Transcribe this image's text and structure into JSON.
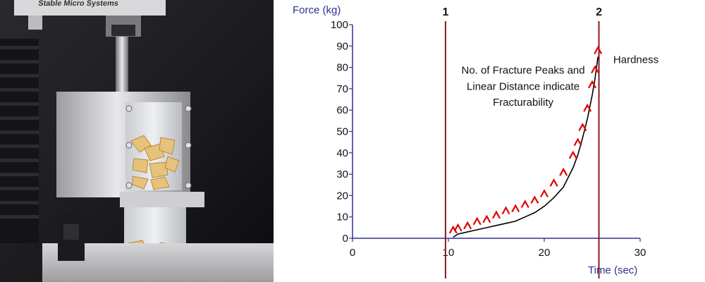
{
  "photo": {
    "brand_text": "Stable Micro Systems"
  },
  "colors": {
    "axis": "#2e3192",
    "marker_line": "#8b1a1a",
    "peak_markers": "#e00000",
    "main_curve": "#000000"
  },
  "chart_data": {
    "type": "line",
    "title": "",
    "xlabel": "Time (sec)",
    "ylabel": "Force (kg)",
    "xlim": [
      0,
      30
    ],
    "ylim": [
      0,
      100
    ],
    "xticks": [
      0,
      10,
      20,
      30
    ],
    "yticks": [
      0,
      10,
      20,
      30,
      40,
      50,
      60,
      70,
      80,
      90,
      100
    ],
    "grid": false,
    "markers": [
      {
        "label": "1",
        "x": 9.7
      },
      {
        "label": "2",
        "x": 25.7
      }
    ],
    "annotations": [
      {
        "text": "No. of Fracture Peaks and",
        "x": 17.8,
        "y": 77
      },
      {
        "text": "Linear Distance indicate",
        "x": 17.8,
        "y": 69.5
      },
      {
        "text": "Fracturability",
        "x": 17.8,
        "y": 62
      },
      {
        "text": "Hardness",
        "x": 27.2,
        "y": 82
      }
    ],
    "series": [
      {
        "style": "black-line",
        "x": [
          10.5,
          11,
          12,
          13,
          14,
          15,
          16,
          17,
          18,
          19,
          20,
          21,
          22,
          23,
          23.5,
          24,
          24.5,
          25,
          25.3,
          25.6
        ],
        "y": [
          0.5,
          2,
          3,
          4,
          5,
          6,
          7,
          8,
          10,
          12,
          15,
          19,
          24,
          33,
          39,
          47,
          56,
          67,
          75,
          85
        ]
      },
      {
        "style": "red-peaks",
        "x": [
          10.5,
          11,
          12,
          13,
          14,
          15,
          16,
          17,
          18,
          19,
          20,
          21,
          22,
          23,
          23.5,
          24,
          24.5,
          25,
          25.3,
          25.6
        ],
        "y": [
          4,
          5,
          6,
          8,
          9,
          11,
          13,
          14,
          16,
          18,
          21,
          26,
          31,
          39,
          45,
          52,
          61,
          72,
          79,
          88
        ]
      }
    ]
  }
}
